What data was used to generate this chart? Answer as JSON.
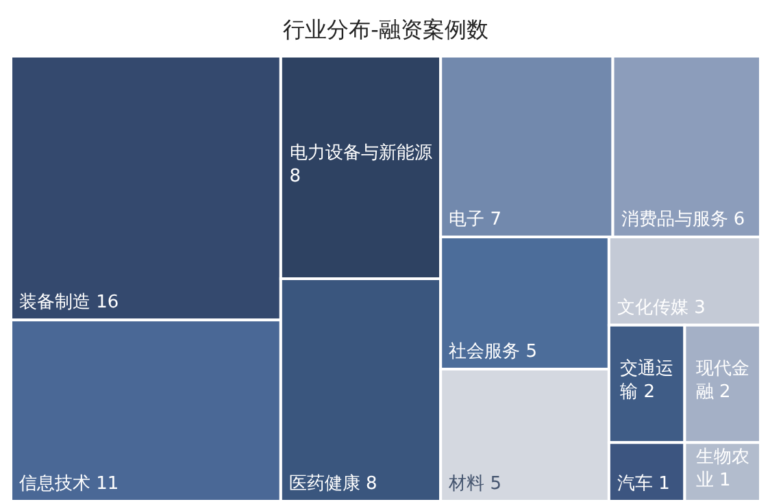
{
  "chart_data": {
    "type": "other",
    "title": "行业分布-融资案例数",
    "categories": [
      "装备制造",
      "信息技术",
      "电力设备与新能源",
      "医药健康",
      "电子",
      "消费品与服务",
      "社会服务",
      "材料",
      "文化传媒",
      "交通运输",
      "现代金融",
      "汽车",
      "生物农业"
    ],
    "values": [
      16,
      11,
      8,
      8,
      7,
      6,
      5,
      5,
      3,
      2,
      2,
      1,
      1
    ],
    "colors": [
      "#34496e",
      "#4a6896",
      "#2e4262",
      "#3a567e",
      "#7289ad",
      "#8c9dbb",
      "#4c6d9a",
      "#d4d8e0",
      "#c4cad6",
      "#3f5c86",
      "#a4b0c6",
      "#3c5580",
      "#b2bccd"
    ],
    "data_labels": true
  }
}
